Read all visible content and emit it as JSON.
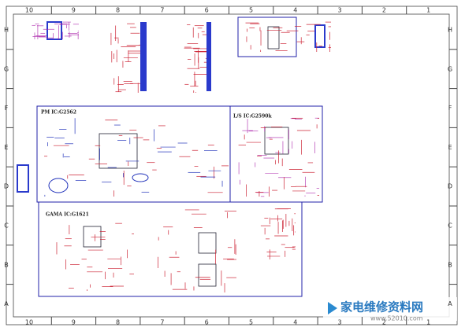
{
  "border": {
    "columns": [
      "10",
      "9",
      "8",
      "7",
      "6",
      "5",
      "4",
      "3",
      "2",
      "1"
    ],
    "rows": [
      "H",
      "G",
      "F",
      "E",
      "D",
      "C",
      "B",
      "A"
    ]
  },
  "blocks": [
    {
      "title": "PM IC:G2562"
    },
    {
      "title": "L/S IC:G2590k"
    },
    {
      "title": "GAMA IC:G1621"
    }
  ],
  "watermark": {
    "brand": "家电维修资料网",
    "url": "www.52010.com"
  }
}
